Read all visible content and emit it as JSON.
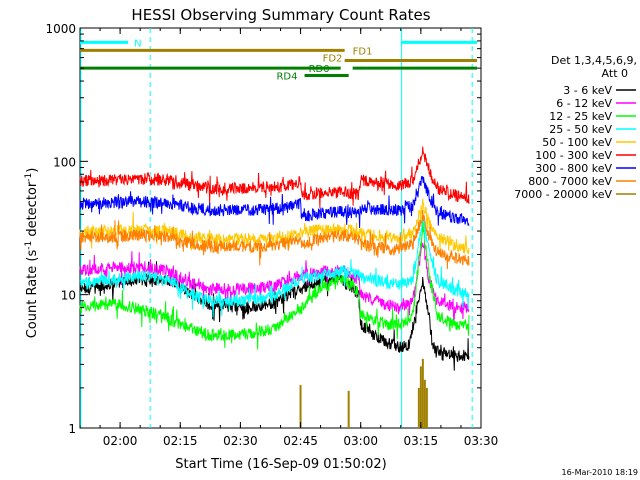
{
  "chart_data": {
    "type": "line",
    "title": "HESSI Observing Summary Count Rates",
    "xlabel": "Start Time (16-Sep-09 01:50:02)",
    "ylabel_main": "Count Rate (s",
    "ylabel_sup1": "-1",
    "ylabel_mid": " detector",
    "ylabel_sup2": "-1",
    "ylabel_end": ")",
    "yscale": "log",
    "ylim": [
      1,
      1000
    ],
    "xlim": [
      110.0,
      210.0
    ],
    "x_unit": "minutes since 00:00 UT",
    "x_ticks": [
      {
        "x": 120,
        "label": "02:00"
      },
      {
        "x": 135,
        "label": "02:15"
      },
      {
        "x": 150,
        "label": "02:30"
      },
      {
        "x": 165,
        "label": "02:45"
      },
      {
        "x": 180,
        "label": "03:00"
      },
      {
        "x": 195,
        "label": "03:15"
      },
      {
        "x": 210,
        "label": "03:30"
      }
    ],
    "y_ticks": [
      {
        "y": 1,
        "label": "1"
      },
      {
        "y": 10,
        "label": "10"
      },
      {
        "y": 100,
        "label": "100"
      },
      {
        "y": 1000,
        "label": "1000"
      }
    ],
    "grid": false,
    "legend_header": [
      "Det 1,3,4,5,6,9,",
      "Att 0"
    ],
    "legend_position": "right",
    "series": [
      {
        "name": "3 - 6 keV",
        "color": "#000000",
        "jitter": 1.0,
        "points": [
          [
            110,
            11
          ],
          [
            118,
            12
          ],
          [
            125,
            13
          ],
          [
            132,
            13
          ],
          [
            138,
            10
          ],
          [
            142,
            8.5
          ],
          [
            150,
            8
          ],
          [
            158,
            8.5
          ],
          [
            165,
            11
          ],
          [
            171,
            13
          ],
          [
            175,
            13
          ],
          [
            178,
            11
          ],
          [
            179.5,
            10
          ],
          [
            180,
            6
          ],
          [
            183,
            5
          ],
          [
            186,
            4.5
          ],
          [
            190,
            4
          ],
          [
            192,
            4.2
          ],
          [
            194,
            8
          ],
          [
            195.5,
            13
          ],
          [
            197,
            7
          ],
          [
            198,
            4
          ],
          [
            203,
            3.5
          ],
          [
            207,
            3.5
          ]
        ]
      },
      {
        "name": "6 - 12 keV",
        "color": "#ff00ff",
        "jitter": 1.0,
        "points": [
          [
            110,
            15
          ],
          [
            118,
            16
          ],
          [
            125,
            16
          ],
          [
            132,
            15
          ],
          [
            138,
            12
          ],
          [
            142,
            11
          ],
          [
            150,
            11
          ],
          [
            158,
            11.5
          ],
          [
            165,
            14
          ],
          [
            171,
            15
          ],
          [
            176,
            15
          ],
          [
            179.5,
            13
          ],
          [
            180,
            10
          ],
          [
            183,
            9
          ],
          [
            186,
            8.5
          ],
          [
            190,
            8
          ],
          [
            193,
            9
          ],
          [
            195.5,
            24
          ],
          [
            197,
            13
          ],
          [
            199,
            9
          ],
          [
            203,
            8
          ],
          [
            207,
            8
          ]
        ]
      },
      {
        "name": "12 - 25 keV",
        "color": "#00ff00",
        "jitter": 1.0,
        "points": [
          [
            110,
            8
          ],
          [
            118,
            8.5
          ],
          [
            124,
            8
          ],
          [
            130,
            7
          ],
          [
            135,
            6
          ],
          [
            142,
            5
          ],
          [
            150,
            5
          ],
          [
            158,
            5.5
          ],
          [
            165,
            8
          ],
          [
            170,
            11
          ],
          [
            175,
            13
          ],
          [
            178,
            12
          ],
          [
            179.5,
            10
          ],
          [
            180,
            7
          ],
          [
            183,
            6.5
          ],
          [
            187,
            6
          ],
          [
            190,
            6
          ],
          [
            193,
            7
          ],
          [
            195.5,
            33
          ],
          [
            197,
            15
          ],
          [
            199,
            7
          ],
          [
            203,
            6
          ],
          [
            207,
            6
          ]
        ]
      },
      {
        "name": "25 - 50 keV",
        "color": "#00ffff",
        "jitter": 1.0,
        "points": [
          [
            110,
            12
          ],
          [
            118,
            13
          ],
          [
            125,
            14
          ],
          [
            132,
            13
          ],
          [
            138,
            10
          ],
          [
            142,
            9
          ],
          [
            150,
            9
          ],
          [
            158,
            9.5
          ],
          [
            165,
            13
          ],
          [
            170,
            14
          ],
          [
            176,
            15
          ],
          [
            179.5,
            14
          ],
          [
            180,
            14
          ],
          [
            183,
            13
          ],
          [
            187,
            12
          ],
          [
            190,
            12
          ],
          [
            193,
            13
          ],
          [
            195.5,
            38
          ],
          [
            197,
            22
          ],
          [
            199,
            13
          ],
          [
            203,
            11
          ],
          [
            207,
            10
          ]
        ]
      },
      {
        "name": "50 - 100 keV",
        "color": "#ffc800",
        "jitter": 1.0,
        "points": [
          [
            110,
            29
          ],
          [
            118,
            30
          ],
          [
            125,
            31
          ],
          [
            132,
            30
          ],
          [
            138,
            27
          ],
          [
            142,
            26
          ],
          [
            150,
            26
          ],
          [
            158,
            26
          ],
          [
            165,
            29
          ],
          [
            170,
            31
          ],
          [
            176,
            31
          ],
          [
            179.5,
            29
          ],
          [
            180,
            29
          ],
          [
            183,
            28
          ],
          [
            187,
            27
          ],
          [
            190,
            27
          ],
          [
            193,
            29
          ],
          [
            195.5,
            48
          ],
          [
            197,
            35
          ],
          [
            199,
            28
          ],
          [
            203,
            24
          ],
          [
            207,
            22
          ]
        ]
      },
      {
        "name": "100 - 300 keV",
        "color": "#ff0000",
        "jitter": 1.0,
        "points": [
          [
            110,
            71
          ],
          [
            118,
            72
          ],
          [
            125,
            74
          ],
          [
            132,
            72
          ],
          [
            138,
            66
          ],
          [
            142,
            63
          ],
          [
            150,
            63
          ],
          [
            158,
            64
          ],
          [
            163,
            67
          ],
          [
            165,
            71
          ],
          [
            165.3,
            56
          ],
          [
            170,
            58
          ],
          [
            176,
            59
          ],
          [
            179.5,
            56
          ],
          [
            180,
            73
          ],
          [
            183,
            71
          ],
          [
            187,
            68
          ],
          [
            190,
            66
          ],
          [
            193,
            72
          ],
          [
            195.5,
            118
          ],
          [
            197,
            85
          ],
          [
            199,
            62
          ],
          [
            203,
            56
          ],
          [
            207,
            52
          ]
        ]
      },
      {
        "name": "300 - 800 keV",
        "color": "#0000ff",
        "jitter": 1.0,
        "points": [
          [
            110,
            48
          ],
          [
            118,
            49
          ],
          [
            125,
            50
          ],
          [
            132,
            49
          ],
          [
            138,
            45
          ],
          [
            142,
            43
          ],
          [
            150,
            43
          ],
          [
            158,
            44
          ],
          [
            163,
            46
          ],
          [
            165,
            48
          ],
          [
            165.3,
            38
          ],
          [
            170,
            41
          ],
          [
            176,
            42
          ],
          [
            179.5,
            40
          ],
          [
            180,
            45
          ],
          [
            183,
            44
          ],
          [
            187,
            43
          ],
          [
            190,
            43
          ],
          [
            193,
            47
          ],
          [
            195.5,
            74
          ],
          [
            197,
            55
          ],
          [
            199,
            42
          ],
          [
            203,
            38
          ],
          [
            207,
            36
          ]
        ]
      },
      {
        "name": "800 - 7000 keV",
        "color": "#ff8000",
        "jitter": 1.0,
        "points": [
          [
            110,
            27
          ],
          [
            118,
            27
          ],
          [
            125,
            28
          ],
          [
            132,
            27
          ],
          [
            138,
            24
          ],
          [
            142,
            23
          ],
          [
            150,
            23
          ],
          [
            158,
            23
          ],
          [
            163,
            25
          ],
          [
            165,
            26
          ],
          [
            165.3,
            24
          ],
          [
            170,
            27
          ],
          [
            176,
            28
          ],
          [
            179.5,
            26
          ],
          [
            180,
            24
          ],
          [
            183,
            23
          ],
          [
            187,
            22
          ],
          [
            190,
            22
          ],
          [
            193,
            24
          ],
          [
            195.5,
            40
          ],
          [
            197,
            28
          ],
          [
            199,
            21
          ],
          [
            203,
            19
          ],
          [
            207,
            18
          ]
        ]
      },
      {
        "name": "7000 - 20000 keV",
        "color": "#a08000",
        "jitter": 0,
        "points": []
      }
    ],
    "spikes": {
      "series": "7000 - 20000 keV",
      "color": "#a08000",
      "x": [
        165.0,
        177.0,
        194.5,
        195.0,
        195.5,
        196.0,
        196.5
      ],
      "y": [
        2.1,
        1.9,
        2.0,
        2.9,
        3.3,
        2.3,
        2.0
      ]
    },
    "night_intervals_start_marker_x": [
      110.0,
      190.0
    ],
    "day_night_bars": [
      {
        "label": "N",
        "x_start": 110,
        "x_end": 122,
        "y": 780,
        "color": "#00ffff",
        "label_x": 123.5
      },
      {
        "label": "",
        "x_start": 190,
        "x_end": 209,
        "y": 780,
        "color": "#00ffff",
        "label_x": 0
      }
    ],
    "flag_bars": [
      {
        "label": "FD1",
        "x_start": 110,
        "x_end": 176,
        "y": 680,
        "color": "#a08000",
        "label_x": 178
      },
      {
        "label": "",
        "x_start": 176,
        "x_end": 209,
        "y": 570,
        "color": "#a08000",
        "label_x": 0
      },
      {
        "label": "FD2",
        "x_start": 0,
        "x_end": 0,
        "y": 600,
        "color": "#a08000",
        "label_x": 170.5
      },
      {
        "label": "RD0",
        "x_start": 110,
        "x_end": 175,
        "y": 500,
        "color": "#008000",
        "label_x": 167
      },
      {
        "label": "",
        "x_start": 178,
        "x_end": 209,
        "y": 500,
        "color": "#008000",
        "label_x": 0
      },
      {
        "label": "RD4",
        "x_start": 166,
        "x_end": 177,
        "y": 440,
        "color": "#008000",
        "label_x": 159
      }
    ],
    "vertical_markers": [
      {
        "x": 110.2,
        "color": "#00ffff",
        "style": "solid"
      },
      {
        "x": 190.2,
        "color": "#00ffff",
        "style": "solid"
      },
      {
        "x": 127.5,
        "color": "#00ffff",
        "style": "dashed"
      },
      {
        "x": 207.8,
        "color": "#00ffff",
        "style": "dashed"
      }
    ]
  },
  "footer": {
    "date_stamp": "16-Mar-2010 18:19"
  }
}
